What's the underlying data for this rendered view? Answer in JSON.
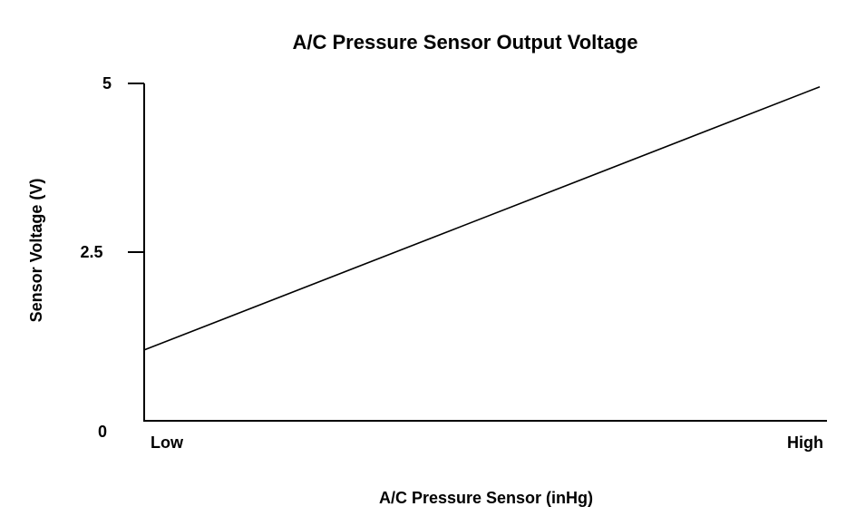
{
  "chart_data": {
    "type": "line",
    "title": "A/C Pressure Sensor Output Voltage",
    "xlabel": "A/C Pressure Sensor (inHg)",
    "ylabel": "Sensor Voltage (V)",
    "x_categories": [
      "Low",
      "High"
    ],
    "y_ticks": [
      {
        "value": 0,
        "label": "0"
      },
      {
        "value": 2.5,
        "label": "2.5"
      },
      {
        "value": 5,
        "label": "5"
      }
    ],
    "ylim": [
      0,
      5
    ],
    "xlim": [
      0,
      1
    ],
    "grid": false,
    "legend": "none",
    "series": [
      {
        "x": [
          0,
          1
        ],
        "values": [
          1.05,
          4.95
        ]
      }
    ],
    "colors": {
      "line": "#000000",
      "axis": "#000000",
      "background": "#ffffff"
    }
  }
}
